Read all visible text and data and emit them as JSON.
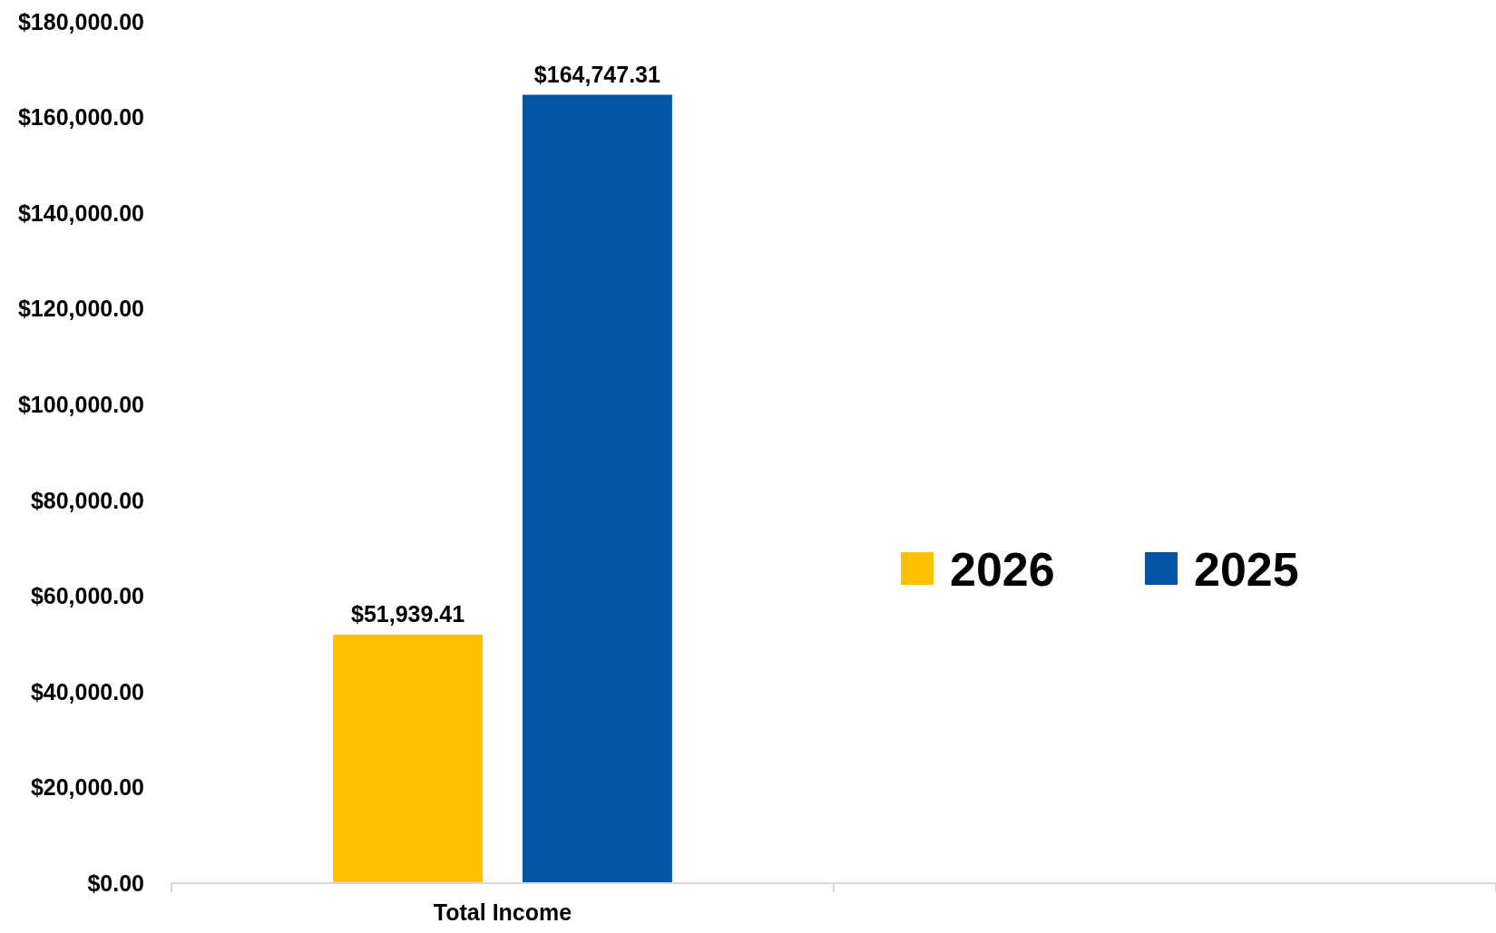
{
  "chart_data": {
    "type": "bar",
    "categories": [
      "Total Income",
      null
    ],
    "series": [
      {
        "name": "2026",
        "color": "#ffc000",
        "values": [
          51939.41,
          null
        ],
        "value_labels": [
          "$51,939.41",
          null
        ]
      },
      {
        "name": "2025",
        "color": "#0455a6",
        "values": [
          164747.31,
          null
        ],
        "value_labels": [
          "$164,747.31",
          null
        ]
      }
    ],
    "ylim": [
      0,
      180000
    ],
    "yticks": [
      {
        "value": 0,
        "label": "$0.00"
      },
      {
        "value": 20000,
        "label": "$20,000.00"
      },
      {
        "value": 40000,
        "label": "$40,000.00"
      },
      {
        "value": 60000,
        "label": "$60,000.00"
      },
      {
        "value": 80000,
        "label": "$80,000.00"
      },
      {
        "value": 100000,
        "label": "$100,000.00"
      },
      {
        "value": 120000,
        "label": "$120,000.00"
      },
      {
        "value": 140000,
        "label": "$140,000.00"
      },
      {
        "value": 160000,
        "label": "$160,000.00"
      },
      {
        "value": 180000,
        "label": "$180,000.00"
      }
    ],
    "grid": false,
    "legend": "right"
  }
}
